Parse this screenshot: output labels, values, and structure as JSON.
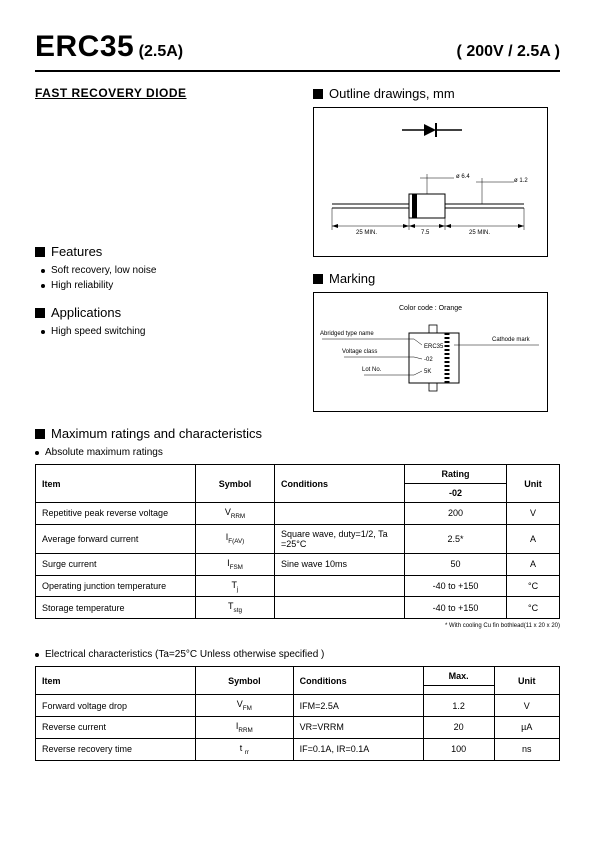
{
  "header": {
    "part_number": "ERC35",
    "part_sub": "(2.5A)",
    "spec": "( 200V / 2.5A )"
  },
  "subtitle": "FAST RECOVERY  DIODE",
  "outline": {
    "heading": "Outline  drawings,  mm",
    "dim_body": "ø 6.4",
    "dim_lead": "ø 1.2",
    "lead_left": "25 MIN.",
    "body_len": "7.5",
    "lead_right": "25 MIN."
  },
  "features": {
    "heading": "Features",
    "items": [
      "Soft recovery, low noise",
      "High reliability"
    ]
  },
  "applications": {
    "heading": "Applications",
    "items": [
      "High speed switching"
    ]
  },
  "marking": {
    "heading": "Marking",
    "color_code": "Color code : Orange",
    "labels": [
      "Abridged type name",
      "Voltage class",
      "Lot No."
    ],
    "cathode": "Cathode mark"
  },
  "max_ratings": {
    "heading": "Maximum ratings and characteristics",
    "caption": "Absolute maximum ratings",
    "cols": [
      "Item",
      "Symbol",
      "Conditions",
      "Rating",
      "Unit"
    ],
    "rating_sub": "-02",
    "rows": [
      {
        "item": "Repetitive peak reverse voltage",
        "symbol": "V",
        "sub": "RRM",
        "cond": "",
        "rating": "200",
        "unit": "V"
      },
      {
        "item": "Average forward current",
        "symbol": "I",
        "sub": "F(AV)",
        "cond": "Square wave, duty=1/2, Ta =25°C",
        "rating": "2.5*",
        "unit": "A"
      },
      {
        "item": "Surge current",
        "symbol": "I",
        "sub": "FSM",
        "cond": "Sine  wave  10ms",
        "rating": "50",
        "unit": "A"
      },
      {
        "item": "Operating junction temperature",
        "symbol": "T",
        "sub": "j",
        "cond": "",
        "rating": "-40  to +150",
        "unit": "°C"
      },
      {
        "item": "Storage temperature",
        "symbol": "T",
        "sub": "stg",
        "cond": "",
        "rating": "-40  to +150",
        "unit": "°C"
      }
    ],
    "footnote": "*  With cooling Cu fin bothlead(11 x 20 x 20)"
  },
  "elec_char": {
    "caption": "Electrical  characteristics  (Ta=25°C  Unless  otherwise  specified )",
    "cols": [
      "Item",
      "Symbol",
      "Conditions",
      "Max.",
      "Unit"
    ],
    "rows": [
      {
        "item": "Forward voltage drop",
        "symbol": "V",
        "sub": "FM",
        "cond": "IFM=2.5A",
        "max": "1.2",
        "unit": "V"
      },
      {
        "item": "Reverse current",
        "symbol": "I",
        "sub": "RRM",
        "cond": "VR=VRRM",
        "max": "20",
        "unit": "µA"
      },
      {
        "item": "Reverse recovery time",
        "symbol": "t ",
        "sub": "rr",
        "cond": "IF=0.1A, IR=0.1A",
        "max": "100",
        "unit": "ns"
      }
    ]
  },
  "colors": {
    "line": "#000000",
    "bg": "#ffffff"
  }
}
